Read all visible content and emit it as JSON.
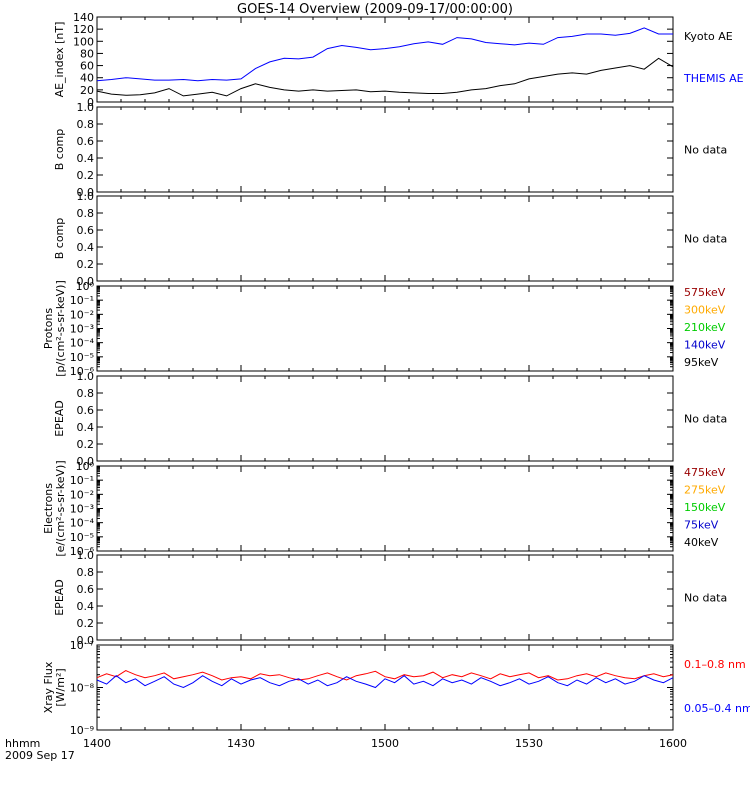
{
  "title": "GOES-14 Overview (2009-09-17/00:00:00)",
  "time_axis": {
    "ticks": [
      "1400",
      "1430",
      "1500",
      "1530",
      "1600"
    ],
    "label_top": "hhmm",
    "label_bottom": "2009 Sep 17",
    "range": [
      "14:00",
      "16:00"
    ]
  },
  "chart_data": [
    {
      "type": "line",
      "ylabel": "AE_index [nT]",
      "ylim": [
        0,
        140
      ],
      "yticks": [
        "0",
        "20",
        "40",
        "60",
        "80",
        "100",
        "120",
        "140"
      ],
      "x_units": "minutes after 1400",
      "series": [
        {
          "name": "Kyoto AE",
          "color": "#000000",
          "x": [
            0,
            3,
            6,
            9,
            12,
            15,
            18,
            21,
            24,
            27,
            30,
            33,
            36,
            39,
            42,
            45,
            48,
            51,
            54,
            57,
            60,
            63,
            66,
            69,
            72,
            75,
            78,
            81,
            84,
            87,
            90,
            93,
            96,
            99,
            102,
            105,
            108,
            111,
            114,
            117,
            120
          ],
          "values": [
            18,
            13,
            11,
            12,
            15,
            22,
            10,
            13,
            16,
            10,
            22,
            30,
            24,
            20,
            18,
            20,
            18,
            19,
            20,
            17,
            18,
            16,
            15,
            14,
            14,
            16,
            20,
            22,
            27,
            30,
            38,
            42,
            46,
            48,
            46,
            52,
            56,
            60,
            54,
            72,
            58
          ]
        },
        {
          "name": "THEMIS AE",
          "color": "#0000ff",
          "x": [
            0,
            3,
            6,
            9,
            12,
            15,
            18,
            21,
            24,
            27,
            30,
            33,
            36,
            39,
            42,
            45,
            48,
            51,
            54,
            57,
            60,
            63,
            66,
            69,
            72,
            75,
            78,
            81,
            84,
            87,
            90,
            93,
            96,
            99,
            102,
            105,
            108,
            111,
            114,
            117,
            120
          ],
          "values": [
            35,
            37,
            40,
            38,
            36,
            36,
            37,
            35,
            37,
            36,
            38,
            55,
            66,
            72,
            71,
            74,
            88,
            93,
            90,
            86,
            88,
            91,
            96,
            99,
            95,
            106,
            104,
            98,
            96,
            94,
            97,
            95,
            106,
            108,
            112,
            112,
            110,
            113,
            122,
            112,
            112
          ]
        }
      ]
    },
    {
      "type": "line",
      "ylabel": "B comp",
      "ylim": [
        0,
        1
      ],
      "yticks": [
        "0.0",
        "0.2",
        "0.4",
        "0.6",
        "0.8",
        "1.0"
      ],
      "annotation": "No data"
    },
    {
      "type": "line",
      "ylabel": "B comp",
      "ylim": [
        0,
        1
      ],
      "yticks": [
        "0.0",
        "0.2",
        "0.4",
        "0.6",
        "0.8",
        "1.0"
      ],
      "annotation": "No data"
    },
    {
      "type": "line",
      "ylabel": "Protons",
      "ylabel2": "[p/(cm²-s-sr-keV)]",
      "ylim": [
        1e-06,
        1
      ],
      "yscale": "log",
      "yticks": [
        "10⁻⁶",
        "10⁻⁵",
        "10⁻⁴",
        "10⁻³",
        "10⁻²",
        "10⁻¹",
        "10⁰"
      ],
      "legend": [
        {
          "name": "575keV",
          "color": "#990000"
        },
        {
          "name": "300keV",
          "color": "#ffaa00"
        },
        {
          "name": "210keV",
          "color": "#00cc00"
        },
        {
          "name": "140keV",
          "color": "#0000cc"
        },
        {
          "name": "95keV",
          "color": "#000000"
        }
      ]
    },
    {
      "type": "line",
      "ylabel": "EPEAD",
      "ylim": [
        0,
        1
      ],
      "yticks": [
        "0.0",
        "0.2",
        "0.4",
        "0.6",
        "0.8",
        "1.0"
      ],
      "annotation": "No data"
    },
    {
      "type": "line",
      "ylabel": "Electrons",
      "ylabel2": "[e/(cm²-s-sr-keV)]",
      "ylim": [
        1e-06,
        1
      ],
      "yscale": "log",
      "yticks": [
        "10⁻⁶",
        "10⁻⁵",
        "10⁻⁴",
        "10⁻³",
        "10⁻²",
        "10⁻¹",
        "10⁰"
      ],
      "legend": [
        {
          "name": "475keV",
          "color": "#990000"
        },
        {
          "name": "275keV",
          "color": "#ffaa00"
        },
        {
          "name": "150keV",
          "color": "#00cc00"
        },
        {
          "name": "75keV",
          "color": "#0000cc"
        },
        {
          "name": "40keV",
          "color": "#000000"
        }
      ]
    },
    {
      "type": "line",
      "ylabel": "EPEAD",
      "ylim": [
        0,
        1
      ],
      "yticks": [
        "0.0",
        "0.2",
        "0.4",
        "0.6",
        "0.8",
        "1.0"
      ],
      "annotation": "No data"
    },
    {
      "type": "line",
      "ylabel": "Xray Flux",
      "ylabel2": "[W/m²]",
      "ylim": [
        1e-09,
        1e-07
      ],
      "yscale": "log",
      "yticks": [
        "10⁻⁹",
        "10⁻⁸",
        "10⁻⁷"
      ],
      "x_units": "minutes after 1400",
      "series": [
        {
          "name": "0.1–0.8 nm",
          "color": "#ff0000",
          "x": [
            0,
            2,
            4,
            6,
            8,
            10,
            12,
            14,
            16,
            18,
            20,
            22,
            24,
            26,
            28,
            30,
            32,
            34,
            36,
            38,
            40,
            42,
            44,
            46,
            48,
            50,
            52,
            54,
            56,
            58,
            60,
            62,
            64,
            66,
            68,
            70,
            72,
            74,
            76,
            78,
            80,
            82,
            84,
            86,
            88,
            90,
            92,
            94,
            96,
            98,
            100,
            102,
            104,
            106,
            108,
            110,
            112,
            114,
            116,
            118,
            120
          ],
          "values": [
            1.7e-08,
            2.1e-08,
            1.8e-08,
            2.5e-08,
            2e-08,
            1.7e-08,
            1.9e-08,
            2.2e-08,
            1.6e-08,
            1.8e-08,
            2e-08,
            2.3e-08,
            1.9e-08,
            1.5e-08,
            1.7e-08,
            1.8e-08,
            1.6e-08,
            2.1e-08,
            1.9e-08,
            2e-08,
            1.7e-08,
            1.5e-08,
            1.6e-08,
            1.9e-08,
            2.2e-08,
            1.8e-08,
            1.5e-08,
            1.9e-08,
            2.1e-08,
            2.4e-08,
            1.8e-08,
            1.6e-08,
            2e-08,
            1.8e-08,
            1.9e-08,
            2.3e-08,
            1.7e-08,
            2e-08,
            1.8e-08,
            2.2e-08,
            1.9e-08,
            1.6e-08,
            2.1e-08,
            1.8e-08,
            2e-08,
            2.2e-08,
            1.7e-08,
            1.9e-08,
            1.5e-08,
            1.6e-08,
            1.9e-08,
            2.1e-08,
            1.8e-08,
            2.2e-08,
            1.9e-08,
            1.7e-08,
            1.6e-08,
            1.9e-08,
            2.1e-08,
            1.8e-08,
            2e-08
          ]
        },
        {
          "name": "0.05–0.4 nm",
          "color": "#0000ff",
          "x": [
            0,
            2,
            4,
            6,
            8,
            10,
            12,
            14,
            16,
            18,
            20,
            22,
            24,
            26,
            28,
            30,
            32,
            34,
            36,
            38,
            40,
            42,
            44,
            46,
            48,
            50,
            52,
            54,
            56,
            58,
            60,
            62,
            64,
            66,
            68,
            70,
            72,
            74,
            76,
            78,
            80,
            82,
            84,
            86,
            88,
            90,
            92,
            94,
            96,
            98,
            100,
            102,
            104,
            106,
            108,
            110,
            112,
            114,
            116,
            118,
            120
          ],
          "values": [
            1.5e-08,
            1.2e-08,
            1.9e-08,
            1.3e-08,
            1.6e-08,
            1.1e-08,
            1.4e-08,
            1.8e-08,
            1.2e-08,
            1e-08,
            1.3e-08,
            1.9e-08,
            1.4e-08,
            1.1e-08,
            1.6e-08,
            1.2e-08,
            1.5e-08,
            1.7e-08,
            1.3e-08,
            1.1e-08,
            1.4e-08,
            1.6e-08,
            1.2e-08,
            1.5e-08,
            1.1e-08,
            1.3e-08,
            1.8e-08,
            1.4e-08,
            1.2e-08,
            1e-08,
            1.6e-08,
            1.3e-08,
            1.9e-08,
            1.2e-08,
            1.4e-08,
            1.1e-08,
            1.6e-08,
            1.3e-08,
            1.5e-08,
            1.2e-08,
            1.7e-08,
            1.4e-08,
            1.1e-08,
            1.3e-08,
            1.6e-08,
            1.2e-08,
            1.4e-08,
            1.8e-08,
            1.3e-08,
            1.1e-08,
            1.5e-08,
            1.2e-08,
            1.7e-08,
            1.3e-08,
            1.6e-08,
            1.2e-08,
            1.4e-08,
            1.9e-08,
            1.5e-08,
            1.3e-08,
            1.7e-08
          ]
        }
      ]
    }
  ]
}
